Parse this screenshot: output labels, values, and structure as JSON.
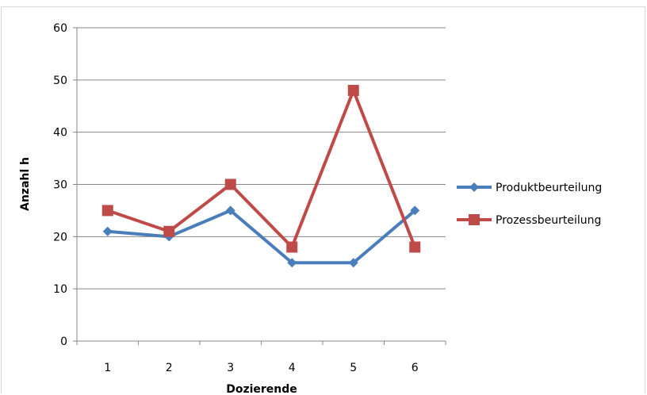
{
  "chart_data": {
    "type": "line",
    "title": "",
    "xlabel": "Dozierende",
    "ylabel": "Anzahl h",
    "categories": [
      "1",
      "2",
      "3",
      "4",
      "5",
      "6"
    ],
    "ylim": [
      0,
      60
    ],
    "yticks": [
      "0",
      "10",
      "20",
      "30",
      "40",
      "50",
      "60"
    ],
    "grid": "horizontal",
    "legend_position": "right",
    "series": [
      {
        "name": "Produktbeurteilung",
        "color": "#4a7ebb",
        "marker": "diamond",
        "values": [
          21,
          20,
          25,
          15,
          15,
          25
        ]
      },
      {
        "name": "Prozessbeurteilung",
        "color": "#be4b48",
        "marker": "square",
        "values": [
          25,
          21,
          30,
          18,
          48,
          18
        ]
      }
    ]
  }
}
